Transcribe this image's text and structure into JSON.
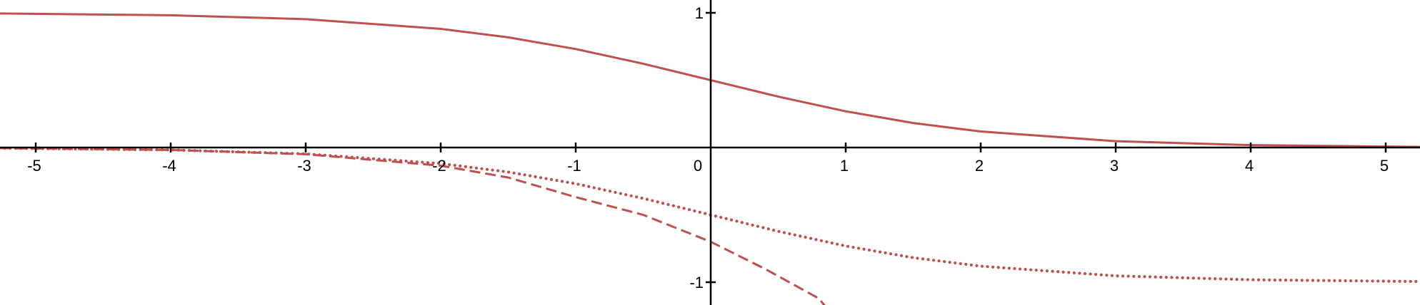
{
  "colors": {
    "curve": "#c0504d",
    "axis": "#000000",
    "background": "#ffffff"
  },
  "chart_data": {
    "type": "line",
    "xlim": [
      -5.27,
      5.27
    ],
    "ylim": [
      -1.18,
      1.03
    ],
    "grid": false,
    "x_ticks": [
      {
        "value": -5,
        "label": "-5"
      },
      {
        "value": -4,
        "label": "-4"
      },
      {
        "value": -3,
        "label": "-3"
      },
      {
        "value": -2,
        "label": "-2"
      },
      {
        "value": -1,
        "label": "-1"
      },
      {
        "value": 0,
        "label": "0"
      },
      {
        "value": 1,
        "label": "1"
      },
      {
        "value": 2,
        "label": "2"
      },
      {
        "value": 3,
        "label": "3"
      },
      {
        "value": 4,
        "label": "4"
      },
      {
        "value": 5,
        "label": "5"
      }
    ],
    "y_ticks": [
      {
        "value": 1,
        "label": "1"
      },
      {
        "value": -1,
        "label": "-1"
      }
    ],
    "series": [
      {
        "style": "solid",
        "points": [
          [
            -5.27,
            0.995
          ],
          [
            -4,
            0.982
          ],
          [
            -3,
            0.953
          ],
          [
            -2,
            0.881
          ],
          [
            -1.5,
            0.818
          ],
          [
            -1,
            0.731
          ],
          [
            -0.5,
            0.622
          ],
          [
            0,
            0.5
          ],
          [
            0.5,
            0.378
          ],
          [
            1,
            0.269
          ],
          [
            1.5,
            0.182
          ],
          [
            2,
            0.119
          ],
          [
            3,
            0.047
          ],
          [
            4,
            0.018
          ],
          [
            5.27,
            0.005
          ]
        ]
      },
      {
        "style": "dotted",
        "points": [
          [
            -5.27,
            -0.005
          ],
          [
            -4,
            -0.018
          ],
          [
            -3,
            -0.047
          ],
          [
            -2,
            -0.119
          ],
          [
            -1.5,
            -0.182
          ],
          [
            -1,
            -0.269
          ],
          [
            -0.5,
            -0.378
          ],
          [
            0,
            -0.5
          ],
          [
            0.5,
            -0.622
          ],
          [
            1,
            -0.731
          ],
          [
            1.5,
            -0.818
          ],
          [
            2,
            -0.881
          ],
          [
            3,
            -0.953
          ],
          [
            4,
            -0.982
          ],
          [
            5.27,
            -0.995
          ]
        ]
      },
      {
        "style": "dashed",
        "points": [
          [
            -5.27,
            -0.005
          ],
          [
            -4,
            -0.018
          ],
          [
            -3,
            -0.05
          ],
          [
            -2,
            -0.135
          ],
          [
            -1.5,
            -0.223
          ],
          [
            -1,
            -0.368
          ],
          [
            -0.5,
            -0.5
          ],
          [
            0,
            -0.7
          ],
          [
            0.4,
            -0.9
          ],
          [
            0.8,
            -1.12
          ],
          [
            0.85,
            -1.18
          ]
        ]
      }
    ]
  }
}
